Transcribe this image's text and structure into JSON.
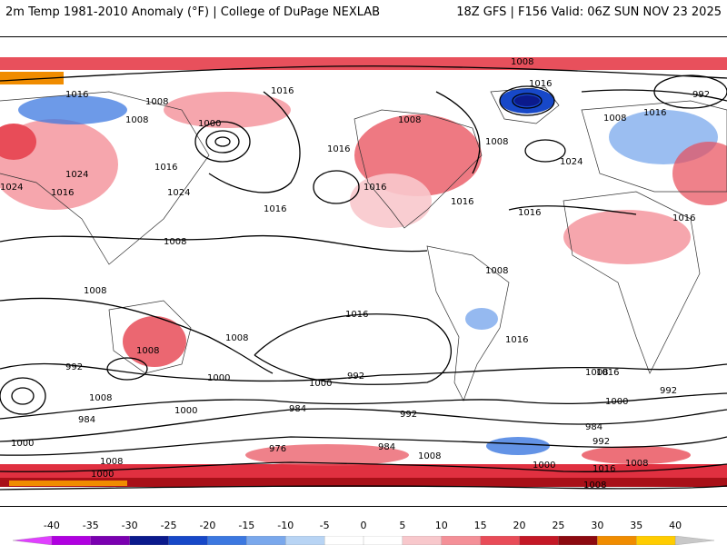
{
  "header": {
    "left": "2m Temp 1981-2010 Anomaly (°F) | College of DuPage NEXLAB",
    "right": "18Z GFS | F156 Valid: 06Z SUN NOV 23 2025"
  },
  "legend": {
    "ticks": [
      "-40",
      "-35",
      "-30",
      "-25",
      "-20",
      "-15",
      "-10",
      "-5",
      "0",
      "5",
      "10",
      "15",
      "20",
      "25",
      "30",
      "35",
      "40"
    ],
    "colors": [
      "#e040ff",
      "#b000e0",
      "#7a00b0",
      "#0b1a8c",
      "#1748c8",
      "#3c78e0",
      "#7aa8ec",
      "#b8d4f4",
      "#ffffff",
      "#ffffff",
      "#f8c8cc",
      "#f49098",
      "#e84c58",
      "#c41826",
      "#8c0a10",
      "#f08c00",
      "#ffcc00",
      "#c8c8c8"
    ]
  },
  "isobars": [
    {
      "label": "1008"
    },
    {
      "label": "1016"
    },
    {
      "label": "992"
    },
    {
      "label": "1016"
    },
    {
      "label": "1008"
    },
    {
      "label": "1000"
    },
    {
      "label": "1016"
    },
    {
      "label": "1008"
    },
    {
      "label": "1024"
    },
    {
      "label": "1024"
    },
    {
      "label": "1016"
    },
    {
      "label": "1024"
    },
    {
      "label": "1016"
    },
    {
      "label": "1016"
    },
    {
      "label": "1016"
    },
    {
      "label": "1008"
    },
    {
      "label": "1024"
    },
    {
      "label": "1008"
    },
    {
      "label": "1016"
    },
    {
      "label": "1008"
    },
    {
      "label": "1016"
    },
    {
      "label": "1008"
    },
    {
      "label": "1016"
    },
    {
      "label": "1016"
    },
    {
      "label": "1008"
    },
    {
      "label": "1016"
    },
    {
      "label": "1008"
    },
    {
      "label": "1016"
    },
    {
      "label": "1016"
    },
    {
      "label": "1008"
    },
    {
      "label": "1008"
    },
    {
      "label": "1000"
    },
    {
      "label": "992"
    },
    {
      "label": "1000"
    },
    {
      "label": "992"
    },
    {
      "label": "1008"
    },
    {
      "label": "1000"
    },
    {
      "label": "984"
    },
    {
      "label": "992"
    },
    {
      "label": "984"
    },
    {
      "label": "976"
    },
    {
      "label": "984"
    },
    {
      "label": "1008"
    },
    {
      "label": "1008"
    },
    {
      "label": "984"
    },
    {
      "label": "992"
    },
    {
      "label": "1008"
    },
    {
      "label": "1000"
    },
    {
      "label": "1016"
    },
    {
      "label": "1000"
    },
    {
      "label": "1000"
    },
    {
      "label": "1008"
    },
    {
      "label": "1016"
    },
    {
      "label": "1000"
    },
    {
      "label": "992"
    },
    {
      "label": "1008"
    }
  ]
}
